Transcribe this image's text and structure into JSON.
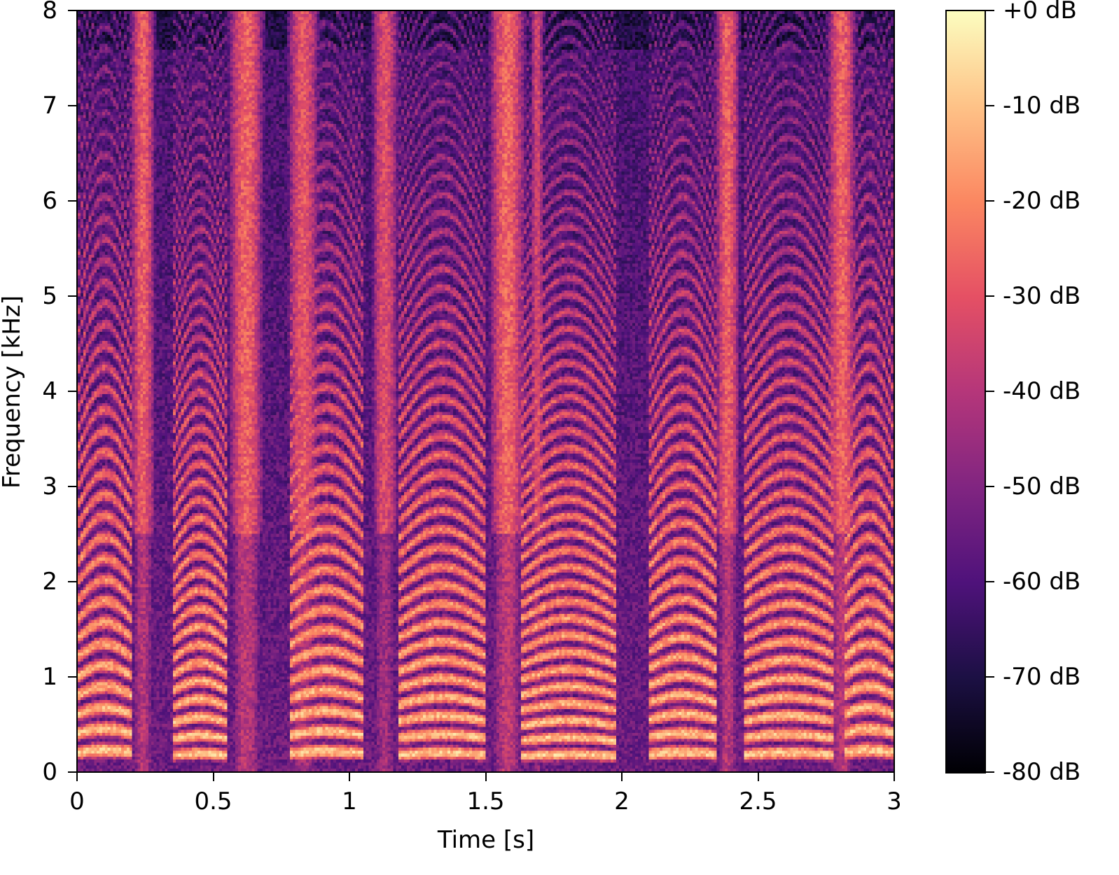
{
  "chart_data": {
    "type": "heatmap",
    "subtype": "spectrogram",
    "title": "",
    "xlabel": "Time [s]",
    "ylabel": "Frequency [kHz]",
    "xlim": [
      0,
      3
    ],
    "ylim": [
      0,
      8
    ],
    "x_ticks": [
      0,
      0.5,
      1,
      1.5,
      2,
      2.5,
      3
    ],
    "x_tick_labels": [
      "0",
      "0.5",
      "1",
      "1.5",
      "2",
      "2.5",
      "3"
    ],
    "y_ticks": [
      0,
      1,
      2,
      3,
      4,
      5,
      6,
      7,
      8
    ],
    "y_tick_labels": [
      "0",
      "1",
      "2",
      "3",
      "4",
      "5",
      "6",
      "7",
      "8"
    ],
    "grid": false,
    "colormap": "magma",
    "colorbar": {
      "range": [
        -80,
        0
      ],
      "ticks": [
        0,
        -10,
        -20,
        -30,
        -40,
        -50,
        -60,
        -70,
        -80
      ],
      "tick_labels": [
        "+0 dB",
        "-10 dB",
        "-20 dB",
        "-30 dB",
        "-40 dB",
        "-50 dB",
        "-60 dB",
        "-70 dB",
        "-80 dB"
      ],
      "position": "right"
    },
    "fricative_bands_s": [
      {
        "t": 0.24,
        "w": 0.035,
        "level": -28
      },
      {
        "t": 0.62,
        "w": 0.05,
        "level": -27
      },
      {
        "t": 0.83,
        "w": 0.045,
        "level": -30
      },
      {
        "t": 1.13,
        "w": 0.04,
        "level": -32
      },
      {
        "t": 1.58,
        "w": 0.05,
        "level": -26
      },
      {
        "t": 1.69,
        "w": 0.02,
        "level": -34
      },
      {
        "t": 2.39,
        "w": 0.035,
        "level": -28
      },
      {
        "t": 2.81,
        "w": 0.04,
        "level": -27
      }
    ],
    "voiced_segments_s": [
      {
        "start": 0.0,
        "end": 0.2,
        "f0_hz": 200
      },
      {
        "start": 0.35,
        "end": 0.55,
        "f0_hz": 170
      },
      {
        "start": 0.78,
        "end": 1.05,
        "f0_hz": 190
      },
      {
        "start": 1.18,
        "end": 1.5,
        "f0_hz": 175
      },
      {
        "start": 1.63,
        "end": 1.98,
        "f0_hz": 160
      },
      {
        "start": 2.1,
        "end": 2.35,
        "f0_hz": 180
      },
      {
        "start": 2.45,
        "end": 2.78,
        "f0_hz": 175
      },
      {
        "start": 2.82,
        "end": 3.0,
        "f0_hz": 200
      }
    ],
    "noise_floor_db": -62
  },
  "colors": {
    "magma_stops": [
      "#000004",
      "#1c1044",
      "#4f127b",
      "#812581",
      "#b5367a",
      "#e55064",
      "#fb8761",
      "#fec287",
      "#fcfdbf"
    ]
  }
}
